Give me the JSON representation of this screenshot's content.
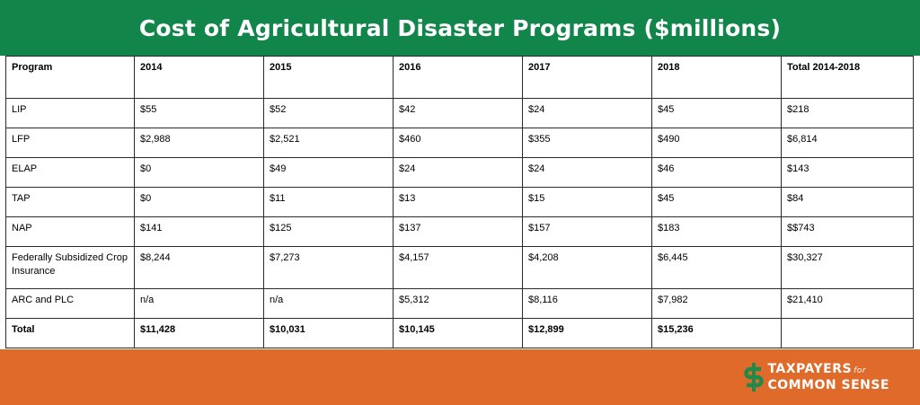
{
  "colors": {
    "header_green": "#12854a",
    "footer_orange": "#e06a2a",
    "logo_green": "#1f8a4c"
  },
  "title": "Cost of Agricultural Disaster Programs ($millions)",
  "logo": {
    "line1_main": "TAXPAYERS",
    "line1_small": "for",
    "line2": "COMMON SENSE",
    "icon": "dollar-sign-icon"
  },
  "chart_data": {
    "type": "table",
    "columns": [
      "Program",
      "2014",
      "2015",
      "2016",
      "2017",
      "2018",
      "Total 2014-2018"
    ],
    "rows": [
      [
        "LIP",
        "$55",
        "$52",
        "$42",
        "$24",
        "$45",
        "$218"
      ],
      [
        "LFP",
        "$2,988",
        "$2,521",
        "$460",
        "$355",
        "$490",
        "$6,814"
      ],
      [
        "ELAP",
        "$0",
        "$49",
        "$24",
        "$24",
        "$46",
        "$143"
      ],
      [
        "TAP",
        "$0",
        "$11",
        "$13",
        "$15",
        "$45",
        "$84"
      ],
      [
        "NAP",
        "$141",
        "$125",
        "$137",
        "$157",
        "$183",
        "$$743"
      ],
      [
        "Federally Subsidized Crop Insurance",
        "$8,244",
        "$7,273",
        "$4,157",
        "$4,208",
        "$6,445",
        "$30,327"
      ],
      [
        "ARC and PLC",
        "n/a",
        "n/a",
        "$5,312",
        "$8,116",
        "$7,982",
        "$21,410"
      ]
    ],
    "total_row": [
      "Total",
      "$11,428",
      "$10,031",
      "$10,145",
      "$12,899",
      "$15,236",
      ""
    ]
  }
}
